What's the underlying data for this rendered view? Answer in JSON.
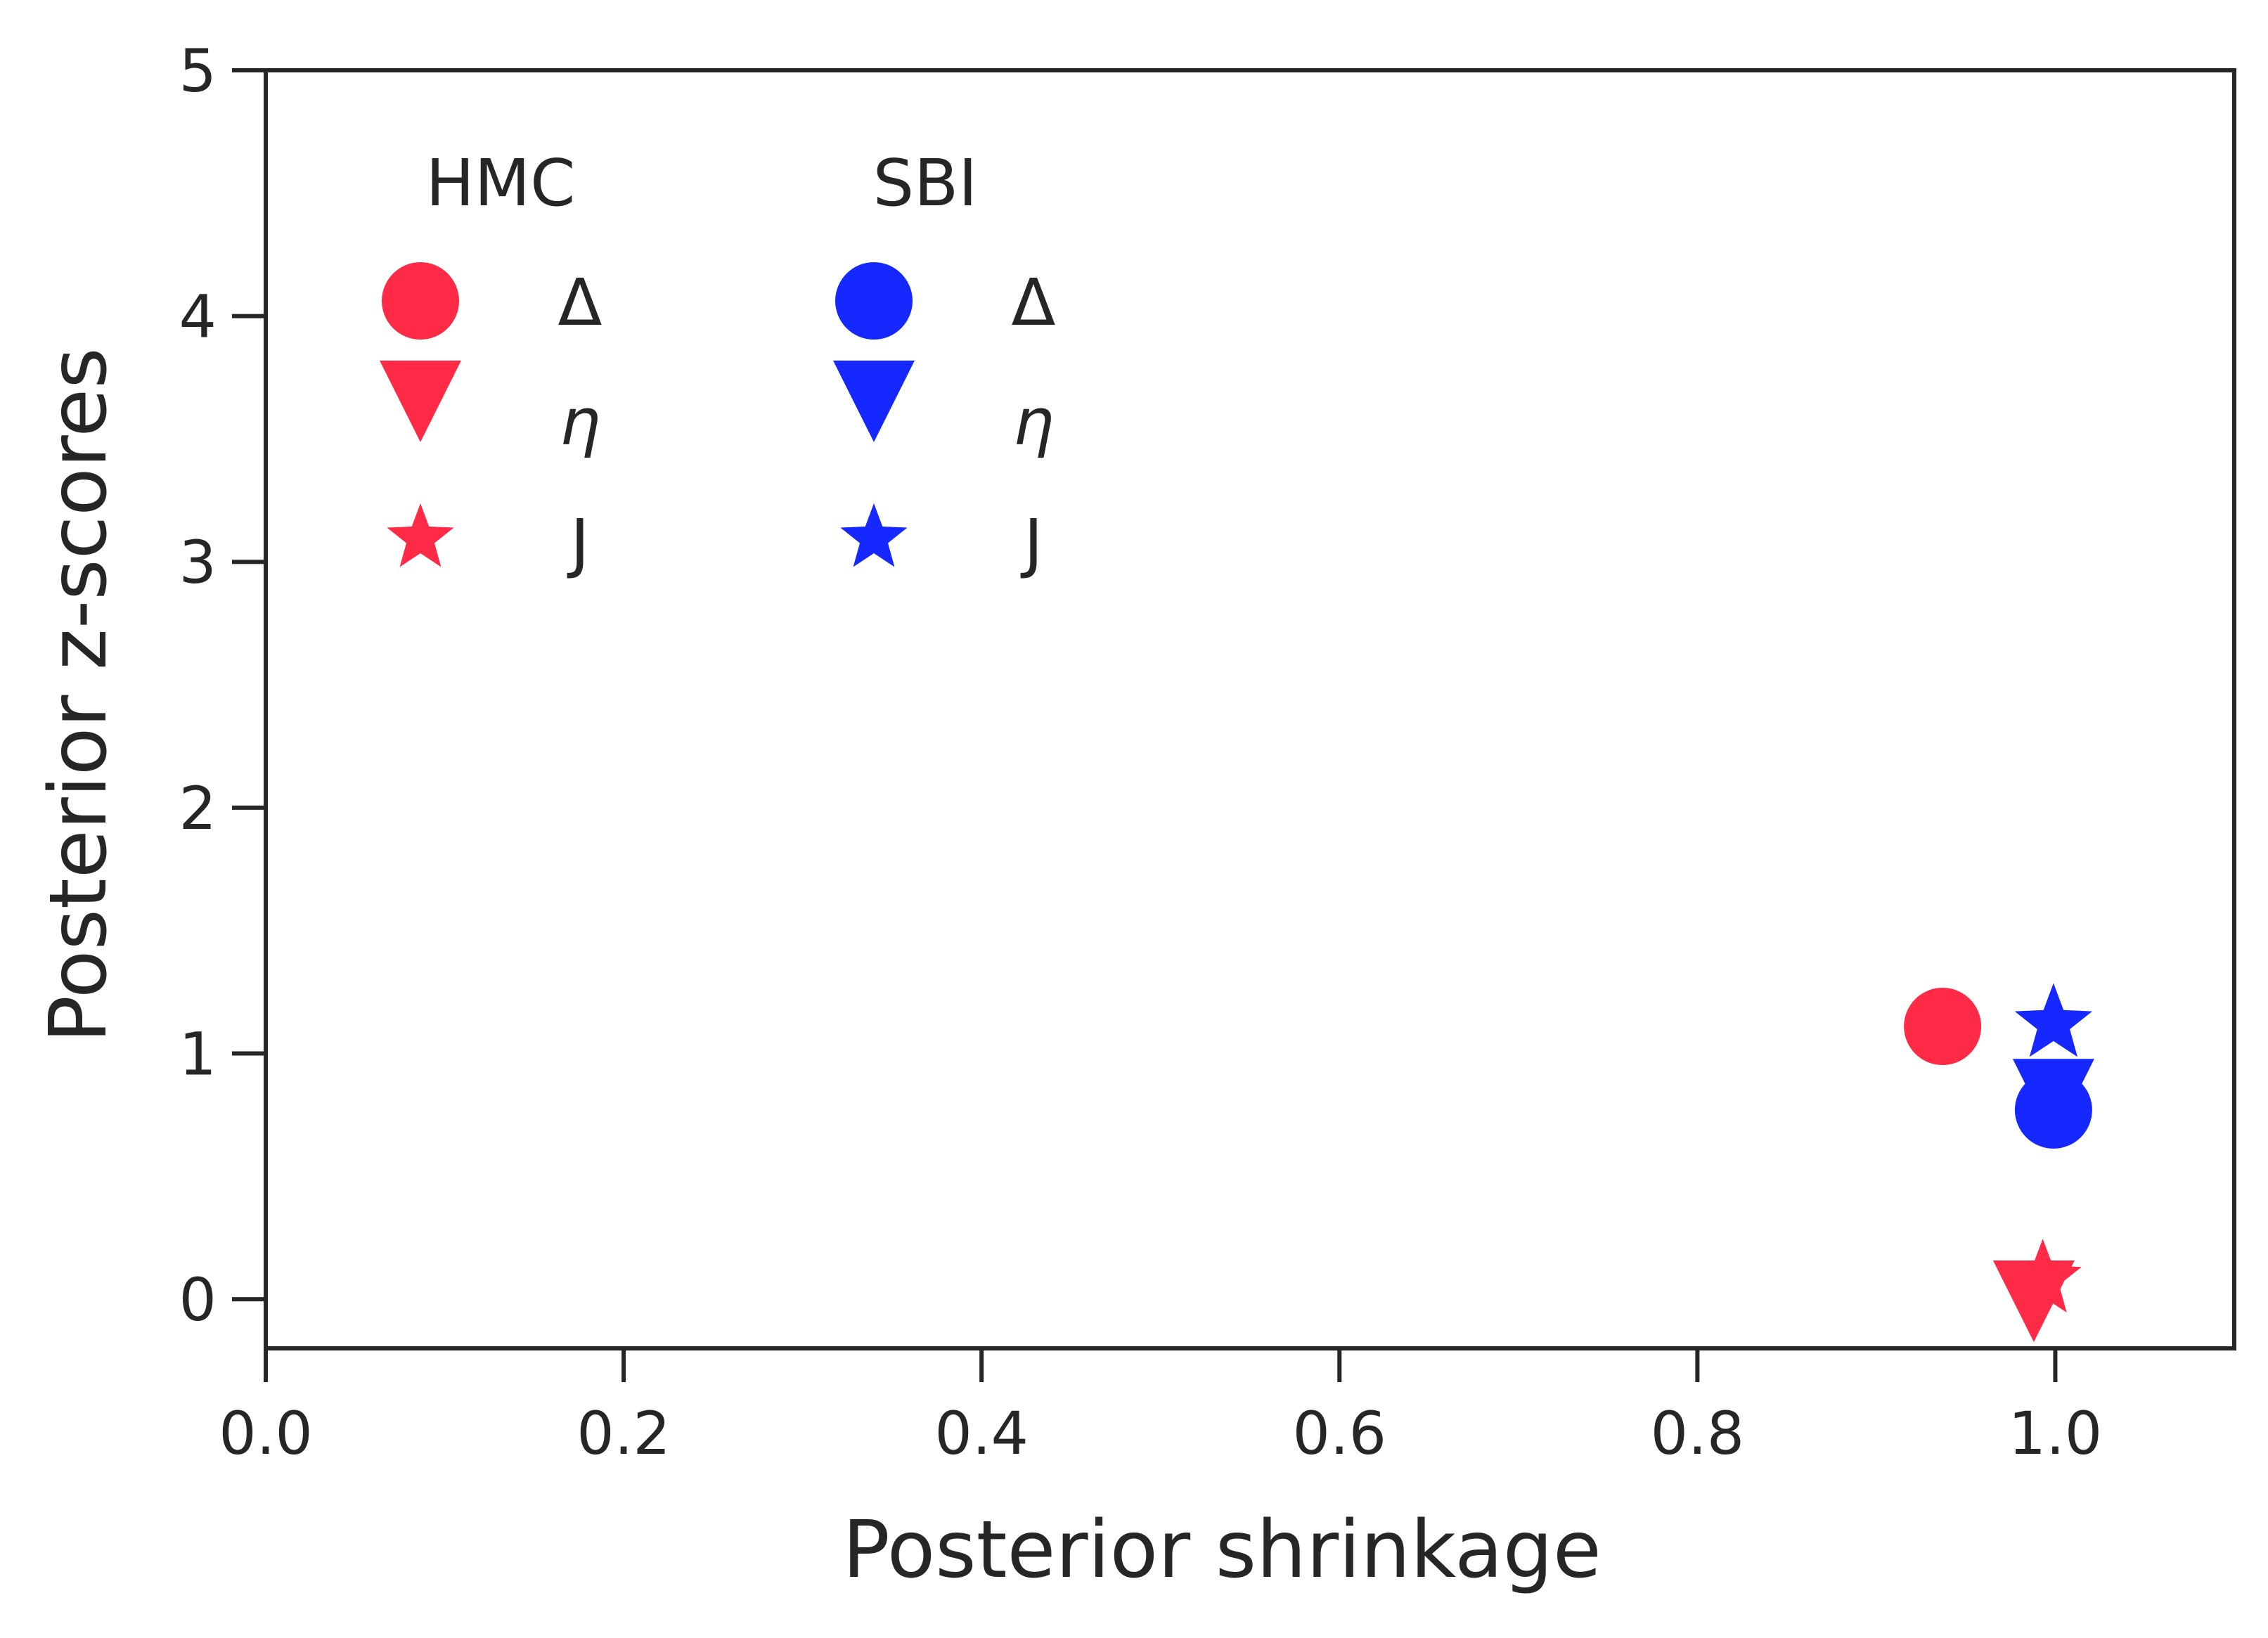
{
  "chart_data": {
    "type": "scatter",
    "title": "",
    "xlabel": "Posterior shrinkage",
    "ylabel": "Posterior z-scores",
    "xlim": [
      0.0,
      1.1
    ],
    "ylim": [
      -0.2,
      5.0
    ],
    "xticks": [
      0.0,
      0.2,
      0.4,
      0.6,
      0.8,
      1.0
    ],
    "xtick_labels": [
      "0.0",
      "0.2",
      "0.4",
      "0.6",
      "0.8",
      "1.0"
    ],
    "yticks": [
      0,
      1,
      2,
      3,
      4,
      5
    ],
    "ytick_labels": [
      "0",
      "1",
      "2",
      "3",
      "4",
      "5"
    ],
    "grid": false,
    "legend_placement": "top-left",
    "groups": [
      {
        "title": "HMC",
        "color": "#ff2a46",
        "series": [
          {
            "name": "Δ",
            "marker": "circle",
            "x": 0.937,
            "y": 1.11
          },
          {
            "name": "η",
            "marker": "triangle-down",
            "x": 0.988,
            "y": 0.0
          },
          {
            "name": "J",
            "marker": "star",
            "x": 0.993,
            "y": 0.08
          }
        ]
      },
      {
        "title": "SBI",
        "color": "#1428ff",
        "series": [
          {
            "name": "Δ",
            "marker": "circle",
            "x": 0.999,
            "y": 0.77
          },
          {
            "name": "η",
            "marker": "triangle-down",
            "x": 0.999,
            "y": 0.82
          },
          {
            "name": "J",
            "marker": "star",
            "x": 0.999,
            "y": 1.12
          }
        ]
      }
    ]
  }
}
